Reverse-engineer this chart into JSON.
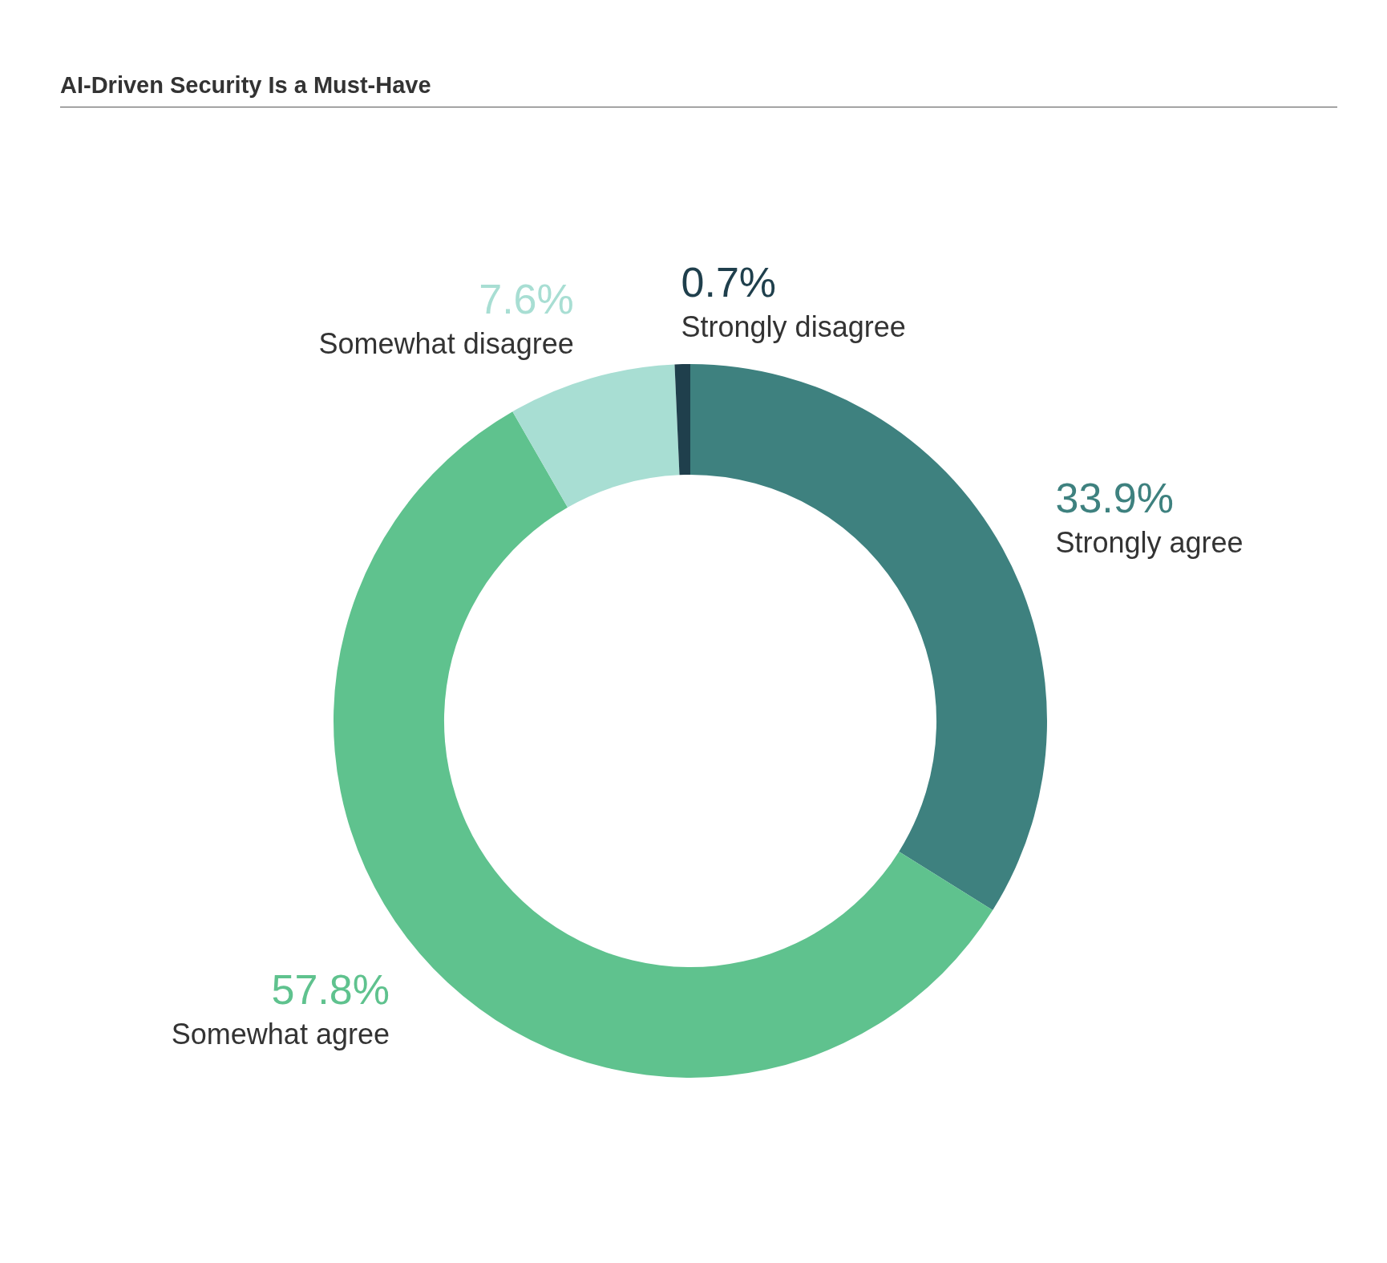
{
  "chart_data": {
    "type": "donut",
    "title": "AI-Driven Security Is a Must-Have",
    "categories": [
      "Strongly agree",
      "Somewhat agree",
      "Somewhat disagree",
      "Strongly disagree"
    ],
    "values": [
      33.9,
      57.8,
      7.6,
      0.7
    ],
    "colors": [
      "#3e817f",
      "#5fc28e",
      "#a8ded3",
      "#1f3f4c"
    ],
    "value_labels": [
      "33.9%",
      "57.8%",
      "7.6%",
      "0.7%"
    ],
    "legend": false
  }
}
